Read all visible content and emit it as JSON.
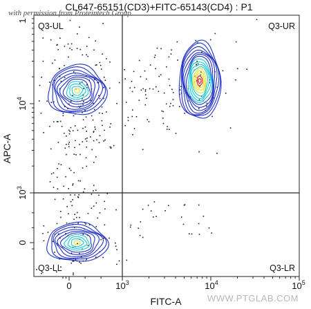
{
  "chart_data": {
    "type": "scatter",
    "title": "CL647-65151(CD3)+FITC-65143(CD4) : P1",
    "xlabel": "FITC-A",
    "ylabel": "APC-A",
    "x_scale": "biexponential",
    "y_scale": "biexponential",
    "x_ticks": [
      {
        "value": 0,
        "label": "0"
      },
      {
        "value": 1000,
        "label": "10",
        "exp": "3"
      },
      {
        "value": 10000,
        "label": "10",
        "exp": "4"
      },
      {
        "value": 100000,
        "label": "10",
        "exp": "5"
      }
    ],
    "y_ticks": [
      {
        "value": 0,
        "label": "0"
      },
      {
        "value": 1000,
        "label": "10",
        "exp": "3"
      },
      {
        "value": 10000,
        "label": "10",
        "exp": "4"
      }
    ],
    "gates": {
      "x": 1000,
      "y": 1000
    },
    "quadrants": [
      "Q3-UL",
      "Q3-UR",
      "Q3-LL",
      "Q3-LR"
    ],
    "populations": [
      {
        "name": "",
        "x": 150,
        "y": 14000
      },
      {
        "name": "",
        "x": 7500,
        "y": 18000
      },
      {
        "name": "",
        "x": 150,
        "y": 0
      }
    ],
    "grid": false
  },
  "watermark": "with permission from Proteintech Group",
  "site_logo": "WWW.PTGLAB.COM",
  "colors": {
    "contour_outer": "#2130c8",
    "contour_mid": "#18c8d8",
    "contour_inner": "#e8e020",
    "contour_core": "#e01010",
    "dots": "#1a1a1a"
  }
}
